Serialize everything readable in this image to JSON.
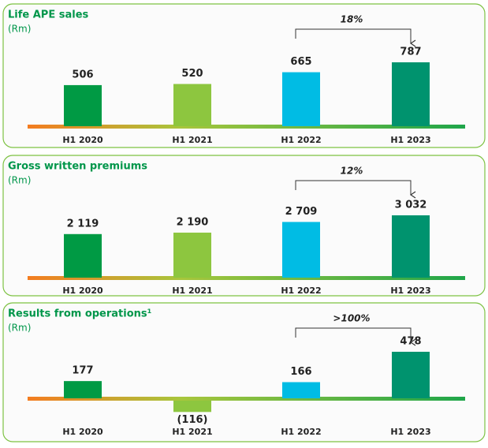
{
  "chart_data": [
    {
      "type": "bar",
      "title": "Life APE sales",
      "subtitle": "(Rm)",
      "categories": [
        "H1 2020",
        "H1 2021",
        "H1 2022",
        "H1 2023"
      ],
      "values": [
        506,
        520,
        665,
        787
      ],
      "colors": [
        "#009a44",
        "#8dc63f",
        "#00bce4",
        "#00936e"
      ],
      "annotation": "18%"
    },
    {
      "type": "bar",
      "title": "Gross written premiums",
      "subtitle": "(Rm)",
      "categories": [
        "H1 2020",
        "H1 2021",
        "H1 2022",
        "H1 2023"
      ],
      "values": [
        2119,
        2190,
        2709,
        3032
      ],
      "value_labels": [
        "2 119",
        "2 190",
        "2 709",
        "3 032"
      ],
      "colors": [
        "#009a44",
        "#8dc63f",
        "#00bce4",
        "#00936e"
      ],
      "annotation": "12%"
    },
    {
      "type": "bar",
      "title": "Results from operations¹",
      "subtitle": "(Rm)",
      "categories": [
        "H1 2020",
        "H1 2021",
        "H1 2022",
        "H1 2023"
      ],
      "values": [
        177,
        -116,
        166,
        478
      ],
      "value_labels": [
        "177",
        "(116)",
        "166",
        "478"
      ],
      "colors": [
        "#009a44",
        "#8dc63f",
        "#00bce4",
        "#00936e"
      ],
      "annotation": ">100%"
    }
  ]
}
